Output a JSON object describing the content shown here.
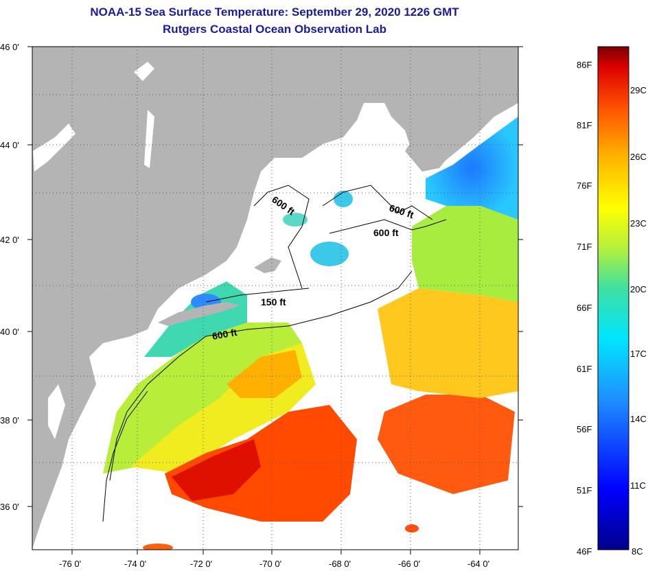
{
  "header": {
    "title": "NOAA-15 Sea Surface Temperature:  September 29, 2020 1226 GMT",
    "subtitle": "Rutgers Coastal Ocean Observation Lab"
  },
  "map": {
    "lat_labels": [
      "46 0'",
      "44 0'",
      "42 0'",
      "40 0'",
      "38 0'",
      "36 0'"
    ],
    "lon_labels": [
      "-76 0'",
      "-74 0'",
      "-72 0'",
      "-70 0'",
      "-68 0'",
      "-66 0'",
      "-64 0'"
    ],
    "contour_labels": [
      "600 ft",
      "600 ft",
      "600 ft",
      "150 ft",
      "600 ft"
    ],
    "colors": {
      "land": "#b4b4b4",
      "no_data": "#ffffff",
      "grid": "#333333"
    }
  },
  "colorbar": {
    "fahrenheit": [
      "86F",
      "81F",
      "76F",
      "71F",
      "66F",
      "61F",
      "56F",
      "51F",
      "46F"
    ],
    "celsius": [
      "29C",
      "26C",
      "23C",
      "20C",
      "17C",
      "14C",
      "11C",
      "8C"
    ]
  }
}
